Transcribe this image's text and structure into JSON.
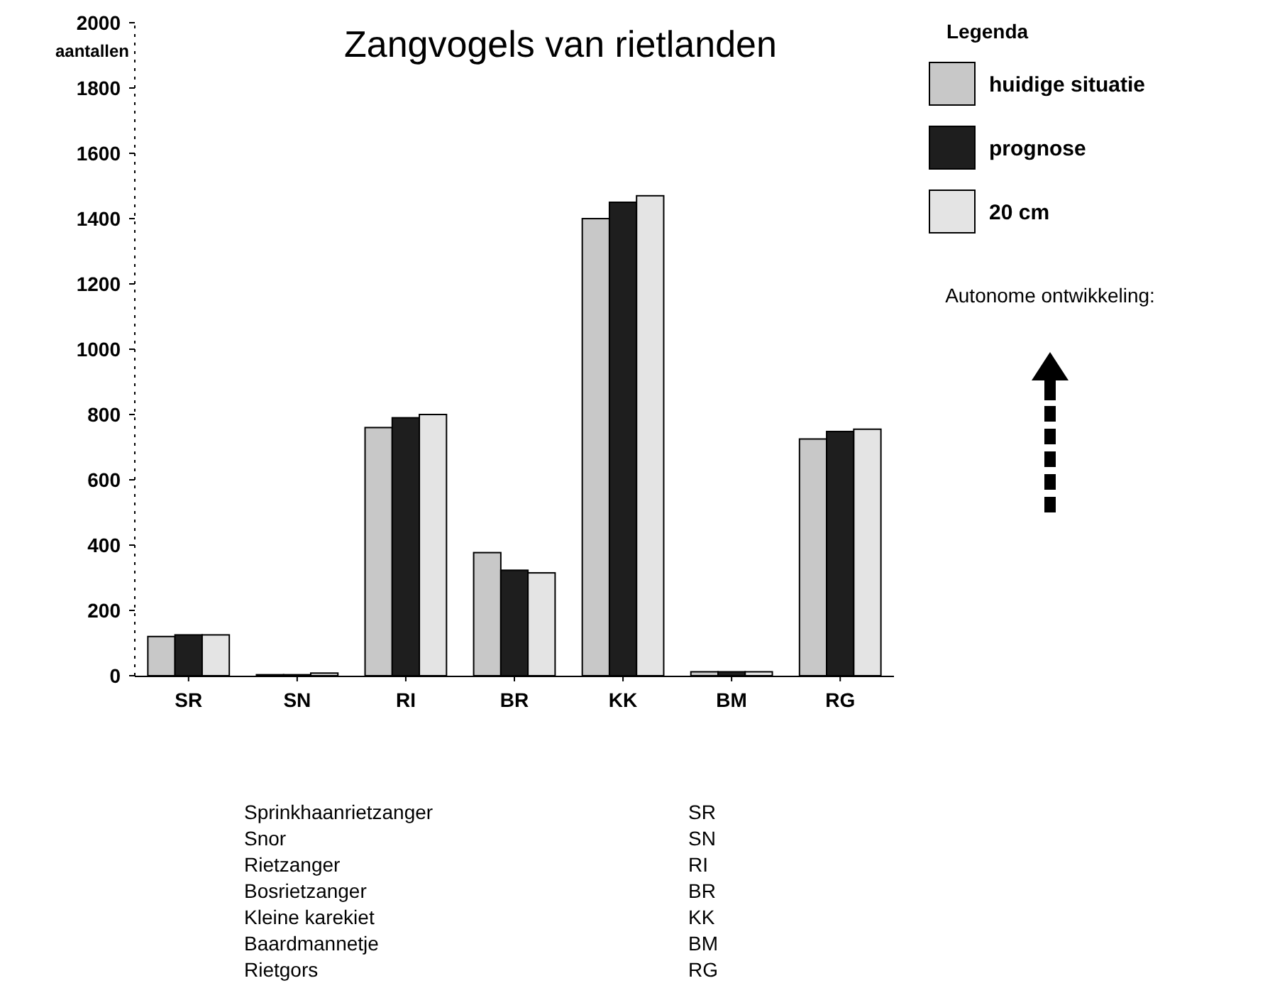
{
  "chart_data": {
    "type": "bar",
    "title": "Zangvogels van rietlanden",
    "ylabel": "aantallen",
    "legend_title": "Legenda",
    "categories": [
      "SR",
      "SN",
      "RI",
      "BR",
      "KK",
      "BM",
      "RG"
    ],
    "series": [
      {
        "name": "huidige situatie",
        "color": "#c8c8c8",
        "values": [
          120,
          3,
          760,
          377,
          1400,
          12,
          725
        ]
      },
      {
        "name": "prognose",
        "color": "#1e1e1e",
        "values": [
          125,
          3,
          790,
          323,
          1450,
          12,
          748
        ]
      },
      {
        "name": "20 cm",
        "color": "#e4e4e4",
        "values": [
          125,
          8,
          800,
          315,
          1470,
          12,
          755
        ]
      }
    ],
    "ylim": [
      0,
      2000
    ],
    "yticks": [
      0,
      200,
      400,
      600,
      800,
      1000,
      1200,
      1400,
      1600,
      1800,
      2000
    ],
    "grid": false,
    "legend": "top right",
    "annotations": [
      "Autonome ontwikkeling:",
      "Sprinkhaanrietzanger",
      "SR",
      "Snor",
      "SN",
      "Rietzanger",
      "RI",
      "Bosrietzanger",
      "BR",
      "Kleine karekiet",
      "KK",
      "Baardmannetje",
      "BM",
      "Rietgors",
      "RG"
    ]
  }
}
